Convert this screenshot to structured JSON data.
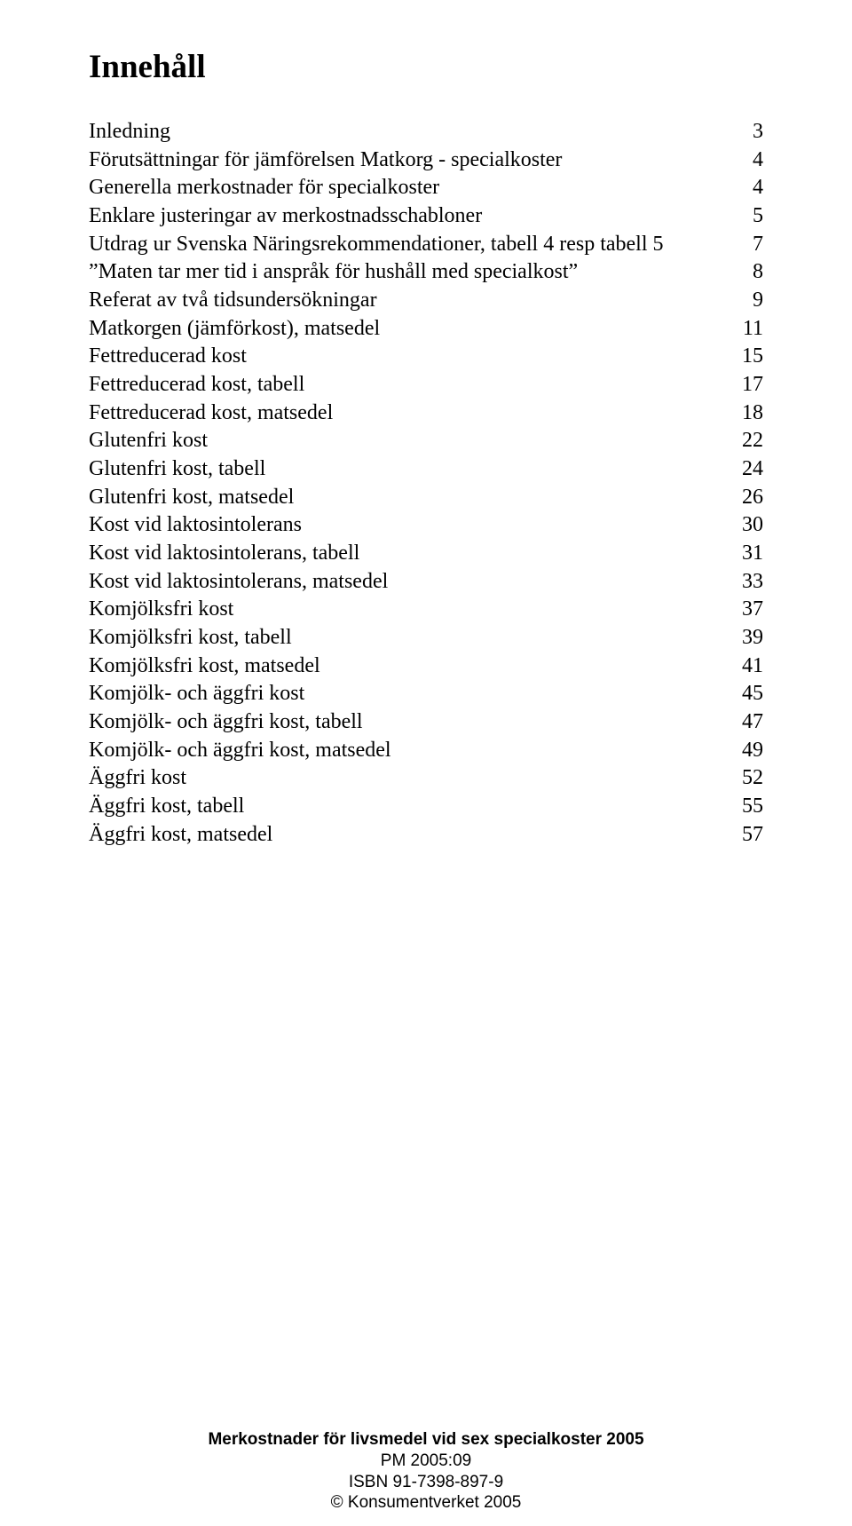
{
  "title": "Innehåll",
  "toc": [
    {
      "label": "Inledning",
      "page": "3"
    },
    {
      "label": "Förutsättningar för jämförelsen Matkorg - specialkoster",
      "page": "4"
    },
    {
      "label": "Generella merkostnader för specialkoster",
      "page": "4"
    },
    {
      "label": "Enklare justeringar av merkostnadsschabloner",
      "page": "5"
    },
    {
      "label": "Utdrag ur Svenska Näringsrekommendationer, tabell 4 resp tabell 5",
      "page": "7"
    },
    {
      "label": "”Maten tar mer tid i anspråk för hushåll med specialkost”",
      "page": "8"
    },
    {
      "label": "Referat av två tidsundersökningar",
      "page": "9"
    },
    {
      "label": "Matkorgen (jämförkost), matsedel",
      "page": "11"
    },
    {
      "label": "Fettreducerad kost",
      "page": "15"
    },
    {
      "label": "Fettreducerad kost, tabell",
      "page": "17"
    },
    {
      "label": "Fettreducerad kost, matsedel",
      "page": "18"
    },
    {
      "label": "Glutenfri kost",
      "page": "22"
    },
    {
      "label": "Glutenfri kost, tabell",
      "page": "24"
    },
    {
      "label": "Glutenfri kost, matsedel",
      "page": "26"
    },
    {
      "label": "Kost vid laktosintolerans",
      "page": "30"
    },
    {
      "label": "Kost vid laktosintolerans, tabell",
      "page": "31"
    },
    {
      "label": "Kost vid laktosintolerans, matsedel",
      "page": "33"
    },
    {
      "label": "Komjölksfri kost",
      "page": "37"
    },
    {
      "label": "Komjölksfri kost, tabell",
      "page": "39"
    },
    {
      "label": "Komjölksfri kost, matsedel",
      "page": "41"
    },
    {
      "label": "Komjölk- och äggfri kost",
      "page": "45"
    },
    {
      "label": "Komjölk- och äggfri kost, tabell",
      "page": "47"
    },
    {
      "label": "Komjölk- och äggfri kost, matsedel",
      "page": "49"
    },
    {
      "label": "Äggfri kost",
      "page": "52"
    },
    {
      "label": "Äggfri kost, tabell",
      "page": "55"
    },
    {
      "label": "Äggfri kost, matsedel",
      "page": "57"
    }
  ],
  "footer": {
    "line1": "Merkostnader för livsmedel vid sex specialkoster 2005",
    "line2": "PM 2005:09",
    "line3": "ISBN 91-7398-897-9",
    "line4": "© Konsumentverket 2005"
  }
}
